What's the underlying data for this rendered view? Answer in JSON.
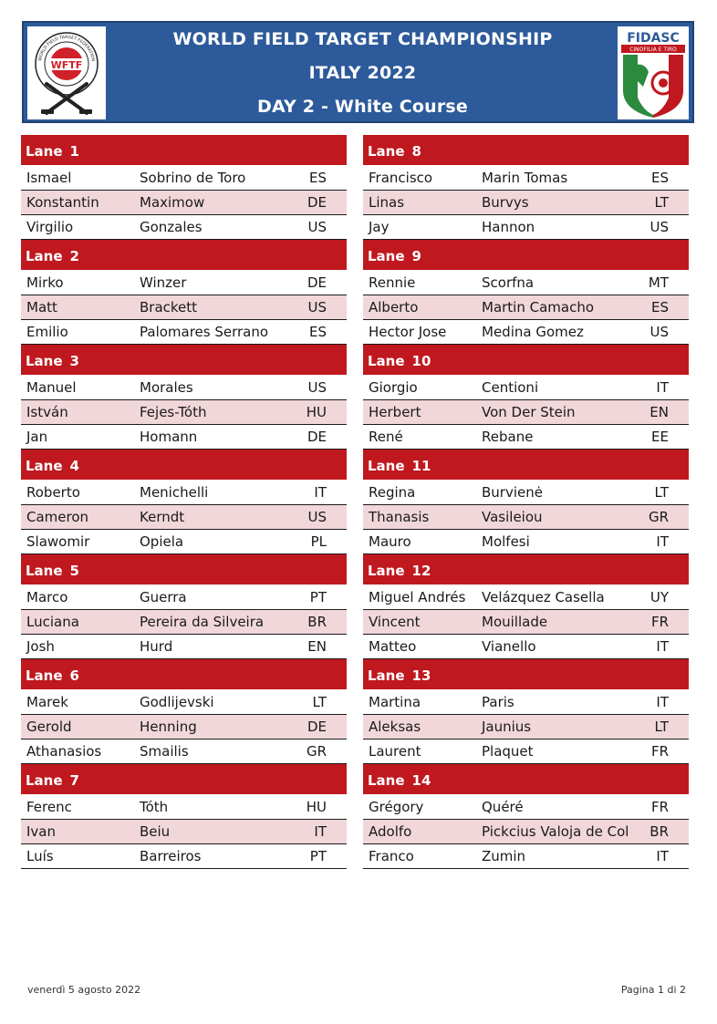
{
  "header": {
    "title": "WORLD FIELD TARGET CHAMPIONSHIP",
    "subtitle": "ITALY 2022",
    "day": "DAY 2 - White Course",
    "left_logo_text": "WFTF",
    "left_logo_ring": "WORLD FIELD TARGET FEDERATION",
    "right_logo_text": "FIDASC",
    "right_logo_sub": "CINOFILIA E TIRO"
  },
  "lane_word": "Lane",
  "colors": {
    "header_bg": "#2d5a9a",
    "lane_bg": "#c0181f",
    "alt_row": "#f1d7da"
  },
  "left_lanes": [
    {
      "num": "1",
      "rows": [
        [
          "Ismael",
          "Sobrino de Toro",
          "ES"
        ],
        [
          "Konstantin",
          "Maximow",
          "DE"
        ],
        [
          "Virgilio",
          "Gonzales",
          "US"
        ]
      ]
    },
    {
      "num": "2",
      "rows": [
        [
          "Mirko",
          "Winzer",
          "DE"
        ],
        [
          "Matt",
          "Brackett",
          "US"
        ],
        [
          "Emilio",
          "Palomares Serrano",
          "ES"
        ]
      ]
    },
    {
      "num": "3",
      "rows": [
        [
          "Manuel",
          "Morales",
          "US"
        ],
        [
          "István",
          "Fejes-Tóth",
          "HU"
        ],
        [
          "Jan",
          "Homann",
          "DE"
        ]
      ]
    },
    {
      "num": "4",
      "rows": [
        [
          "Roberto",
          "Menichelli",
          "IT"
        ],
        [
          "Cameron",
          "Kerndt",
          "US"
        ],
        [
          "Slawomir",
          "Opiela",
          "PL"
        ]
      ]
    },
    {
      "num": "5",
      "rows": [
        [
          "Marco",
          "Guerra",
          "PT"
        ],
        [
          "Luciana",
          "Pereira da Silveira",
          "BR"
        ],
        [
          "Josh",
          "Hurd",
          "EN"
        ]
      ]
    },
    {
      "num": "6",
      "rows": [
        [
          "Marek",
          "Godlijevski",
          "LT"
        ],
        [
          "Gerold",
          "Henning",
          "DE"
        ],
        [
          "Athanasios",
          "Smailis",
          "GR"
        ]
      ]
    },
    {
      "num": "7",
      "rows": [
        [
          "Ferenc",
          "Tóth",
          "HU"
        ],
        [
          "Ivan",
          "Beiu",
          "IT"
        ],
        [
          "Luís",
          "Barreiros",
          "PT"
        ]
      ]
    }
  ],
  "right_lanes": [
    {
      "num": "8",
      "rows": [
        [
          "Francisco",
          "Marin Tomas",
          "ES"
        ],
        [
          "Linas",
          "Burvys",
          "LT"
        ],
        [
          "Jay",
          "Hannon",
          "US"
        ]
      ]
    },
    {
      "num": "9",
      "rows": [
        [
          "Rennie",
          "Scorfna",
          "MT"
        ],
        [
          "Alberto",
          "Martin Camacho",
          "ES"
        ],
        [
          "Hector Jose",
          "Medina Gomez",
          "US"
        ]
      ]
    },
    {
      "num": "10",
      "rows": [
        [
          "Giorgio",
          "Centioni",
          "IT"
        ],
        [
          "Herbert",
          "Von Der Stein",
          "EN"
        ],
        [
          "René",
          "Rebane",
          "EE"
        ]
      ]
    },
    {
      "num": "11",
      "rows": [
        [
          "Regina",
          "Burvienė",
          "LT"
        ],
        [
          "Thanasis",
          "Vasileiou",
          "GR"
        ],
        [
          "Mauro",
          "Molfesi",
          "IT"
        ]
      ]
    },
    {
      "num": "12",
      "rows": [
        [
          "Miguel Andrés",
          "Velázquez Casella",
          "UY"
        ],
        [
          "Vincent",
          "Mouillade",
          "FR"
        ],
        [
          "Matteo",
          "Vianello",
          "IT"
        ]
      ]
    },
    {
      "num": "13",
      "rows": [
        [
          "Martina",
          "Paris",
          "IT"
        ],
        [
          "Aleksas",
          "Jaunius",
          "LT"
        ],
        [
          "Laurent",
          "Plaquet",
          "FR"
        ]
      ]
    },
    {
      "num": "14",
      "rows": [
        [
          "Grégory",
          "Quéré",
          "FR"
        ],
        [
          "Adolfo",
          "Pickcius Valoja de Col",
          "BR"
        ],
        [
          "Franco",
          "Zumin",
          "IT"
        ]
      ]
    }
  ],
  "footer": {
    "date": "venerdì 5 agosto 2022",
    "page": "Pagina 1 di 2"
  }
}
